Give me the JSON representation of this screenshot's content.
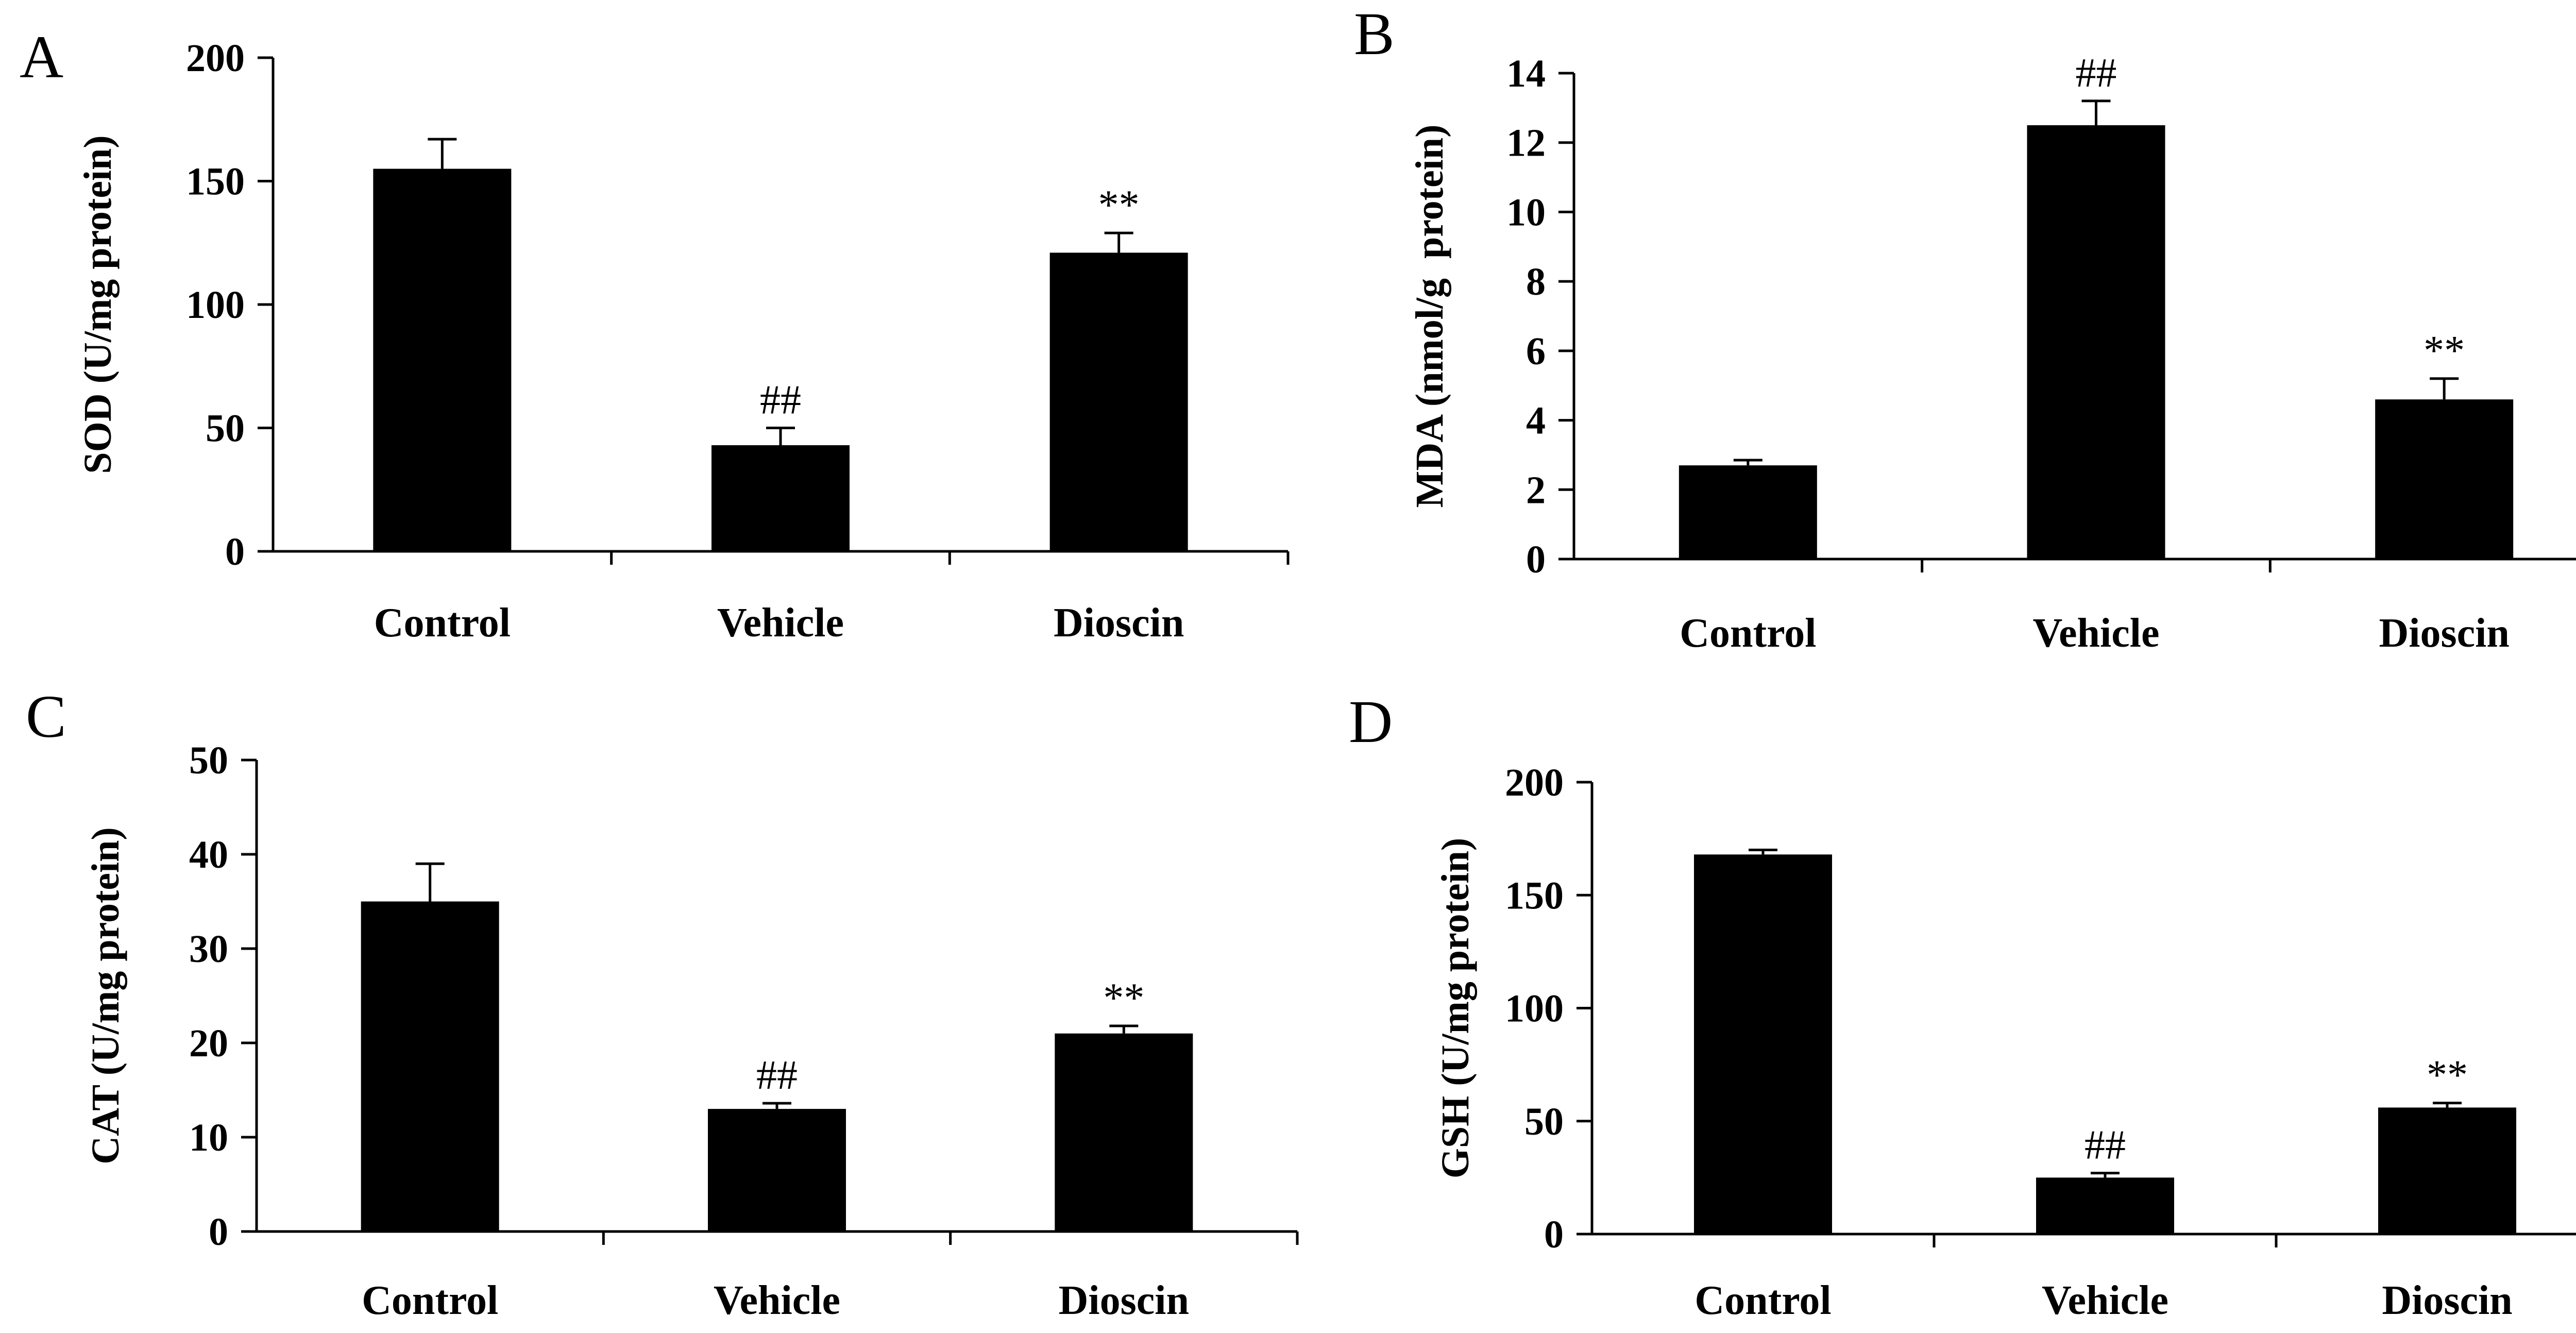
{
  "chart_data": [
    {
      "panel": "A",
      "type": "bar",
      "title": "",
      "ylabel": "SOD (U/mg protein)",
      "xlabel": "",
      "ylim": [
        0,
        200
      ],
      "yticks": [
        0,
        50,
        100,
        150,
        200
      ],
      "categories": [
        "Control",
        "Vehicle",
        "Dioscin"
      ],
      "values": [
        155,
        43,
        121
      ],
      "errors": [
        12,
        7,
        8
      ],
      "annotations": [
        "",
        "##",
        "**"
      ],
      "bar_color": "#000000"
    },
    {
      "panel": "B",
      "type": "bar",
      "title": "",
      "ylabel": "MDA (nmol/g  protein)",
      "xlabel": "",
      "ylim": [
        0,
        14
      ],
      "yticks": [
        0,
        2,
        4,
        6,
        8,
        10,
        12,
        14
      ],
      "categories": [
        "Control",
        "Vehicle",
        "Dioscin"
      ],
      "values": [
        2.7,
        12.5,
        4.6
      ],
      "errors": [
        0.15,
        0.7,
        0.6
      ],
      "annotations": [
        "",
        "##",
        "**"
      ],
      "bar_color": "#000000"
    },
    {
      "panel": "C",
      "type": "bar",
      "title": "",
      "ylabel": "CAT (U/mg protein)",
      "xlabel": "",
      "ylim": [
        0,
        50
      ],
      "yticks": [
        0,
        10,
        20,
        30,
        40,
        50
      ],
      "categories": [
        "Control",
        "Vehicle",
        "Dioscin"
      ],
      "values": [
        35,
        13,
        21
      ],
      "errors": [
        4,
        0.6,
        0.8
      ],
      "annotations": [
        "",
        "##",
        "**"
      ],
      "bar_color": "#000000"
    },
    {
      "panel": "D",
      "type": "bar",
      "title": "",
      "ylabel": "GSH (U/mg protein)",
      "xlabel": "",
      "ylim": [
        0,
        200
      ],
      "yticks": [
        0,
        50,
        100,
        150,
        200
      ],
      "categories": [
        "Control",
        "Vehicle",
        "Dioscin"
      ],
      "values": [
        168,
        25,
        56
      ],
      "errors": [
        2,
        2,
        2
      ],
      "annotations": [
        "",
        "##",
        "**"
      ],
      "bar_color": "#000000"
    }
  ]
}
